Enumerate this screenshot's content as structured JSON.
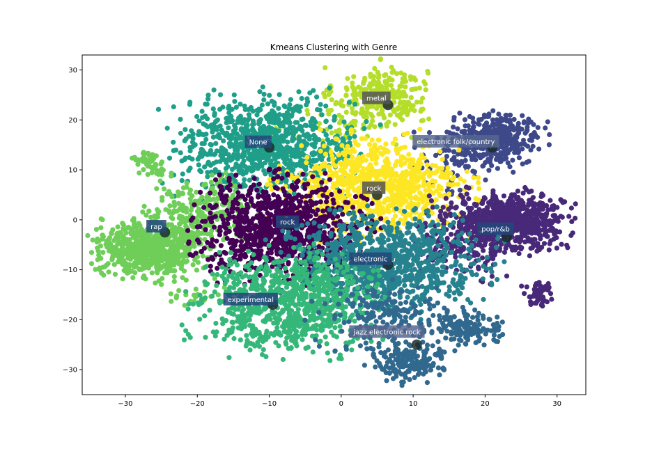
{
  "chart_data": {
    "type": "scatter",
    "title": "Kmeans Clustering with Genre",
    "xlabel": "",
    "ylabel": "",
    "xlim": [
      -36,
      34
    ],
    "ylim": [
      -35,
      33
    ],
    "x_ticks": [
      -30,
      -20,
      -10,
      0,
      10,
      20,
      30
    ],
    "y_ticks": [
      30,
      20,
      10,
      0,
      -10,
      -20,
      -30
    ],
    "x_tick_labels": [
      "−30",
      "−20",
      "−10",
      "0",
      "10",
      "20",
      "30"
    ],
    "y_tick_labels": [
      "30",
      "20",
      "10",
      "0",
      "−10",
      "−20",
      "−30"
    ],
    "grid": false,
    "legend": "none",
    "clusters": [
      {
        "label": "metal",
        "color": "#b5de2b",
        "centroid": [
          6.5,
          23.0
        ],
        "blobs": [
          {
            "cx": 5.5,
            "cy": 25.0,
            "sx": 3.2,
            "sy": 2.8,
            "n": 260
          },
          {
            "cx": 1.0,
            "cy": 19.0,
            "sx": 4.0,
            "sy": 2.5,
            "n": 60
          }
        ]
      },
      {
        "label": "None",
        "color": "#1f9e89",
        "centroid": [
          -10.0,
          14.5
        ],
        "blobs": [
          {
            "cx": -10.0,
            "cy": 15.0,
            "sx": 6.0,
            "sy": 4.5,
            "n": 900
          }
        ]
      },
      {
        "label": "electronic folk/country",
        "color": "#3e4989",
        "centroid": [
          21.0,
          14.5
        ],
        "blobs": [
          {
            "cx": 21.5,
            "cy": 16.0,
            "sx": 3.0,
            "sy": 2.5,
            "n": 380
          },
          {
            "cx": 15.0,
            "cy": 12.0,
            "sx": 3.0,
            "sy": 3.5,
            "n": 70
          }
        ]
      },
      {
        "label": "rock",
        "color": "#fde725",
        "centroid": [
          5.0,
          5.0
        ],
        "blobs": [
          {
            "cx": 5.0,
            "cy": 6.5,
            "sx": 6.0,
            "sy": 4.5,
            "n": 850
          }
        ]
      },
      {
        "label": "rap",
        "color": "#6ece58",
        "centroid": [
          -24.5,
          -2.5
        ],
        "blobs": [
          {
            "cx": -26.5,
            "cy": -5.5,
            "sx": 3.5,
            "sy": 2.8,
            "n": 700
          },
          {
            "cx": -19.0,
            "cy": 2.0,
            "sx": 3.5,
            "sy": 3.0,
            "n": 220
          },
          {
            "cx": -26.5,
            "cy": 11.5,
            "sx": 1.2,
            "sy": 1.0,
            "n": 50
          },
          {
            "cx": -20.0,
            "cy": -15.0,
            "sx": 2.0,
            "sy": 1.5,
            "n": 25
          }
        ]
      },
      {
        "label": "rock",
        "color": "#440154",
        "centroid": [
          -7.5,
          -1.0
        ],
        "blobs": [
          {
            "cx": -8.5,
            "cy": -1.5,
            "sx": 5.5,
            "sy": 4.5,
            "n": 950
          }
        ]
      },
      {
        "label": "pop/r&b",
        "color": "#482878",
        "centroid": [
          23.0,
          -3.5
        ],
        "blobs": [
          {
            "cx": 24.0,
            "cy": -0.5,
            "sx": 3.5,
            "sy": 2.8,
            "n": 650
          },
          {
            "cx": 17.0,
            "cy": -3.0,
            "sx": 3.0,
            "sy": 4.0,
            "n": 200
          },
          {
            "cx": 27.5,
            "cy": -15.0,
            "sx": 1.0,
            "sy": 1.2,
            "n": 60
          }
        ]
      },
      {
        "label": "electronic",
        "color": "#26828e",
        "centroid": [
          6.5,
          -9.0
        ],
        "blobs": [
          {
            "cx": 6.0,
            "cy": -8.5,
            "sx": 6.5,
            "sy": 4.5,
            "n": 900
          }
        ]
      },
      {
        "label": "experimental",
        "color": "#35b779",
        "centroid": [
          -9.5,
          -17.0
        ],
        "blobs": [
          {
            "cx": -7.5,
            "cy": -16.5,
            "sx": 6.0,
            "sy": 4.5,
            "n": 850
          }
        ]
      },
      {
        "label": "jazz electronic rock",
        "color": "#31688e",
        "centroid": [
          10.5,
          -25.0
        ],
        "blobs": [
          {
            "cx": 9.5,
            "cy": -28.5,
            "sx": 2.5,
            "sy": 1.8,
            "n": 180
          },
          {
            "cx": 17.5,
            "cy": -21.5,
            "sx": 2.0,
            "sy": 1.6,
            "n": 140
          },
          {
            "cx": 6.0,
            "cy": -19.5,
            "sx": 5.0,
            "sy": 3.0,
            "n": 180
          }
        ]
      }
    ],
    "labels": [
      {
        "text": "metal",
        "x": 3.5,
        "y": 24.0,
        "box": "#555555"
      },
      {
        "text": "None",
        "x": -12.8,
        "y": 15.2,
        "box": "#23477a"
      },
      {
        "text": "electronic folk/country",
        "x": 10.5,
        "y": 15.3,
        "box": "#56668f"
      },
      {
        "text": "rock",
        "x": 3.5,
        "y": 6.0,
        "box": "#555555"
      },
      {
        "text": "rap",
        "x": -26.5,
        "y": -1.7,
        "box": "#23477a"
      },
      {
        "text": "rock",
        "x": -8.5,
        "y": -0.8,
        "box": "#23477a"
      },
      {
        "text": "pop/r&b",
        "x": 19.5,
        "y": -2.2,
        "box": "#23477a"
      },
      {
        "text": "electronic",
        "x": 1.7,
        "y": -8.2,
        "box": "#23477a"
      },
      {
        "text": "experimental",
        "x": -15.8,
        "y": -16.3,
        "box": "#23477a"
      },
      {
        "text": "jazz electronic rock",
        "x": 1.7,
        "y": -22.8,
        "box": "#56668f"
      }
    ]
  }
}
